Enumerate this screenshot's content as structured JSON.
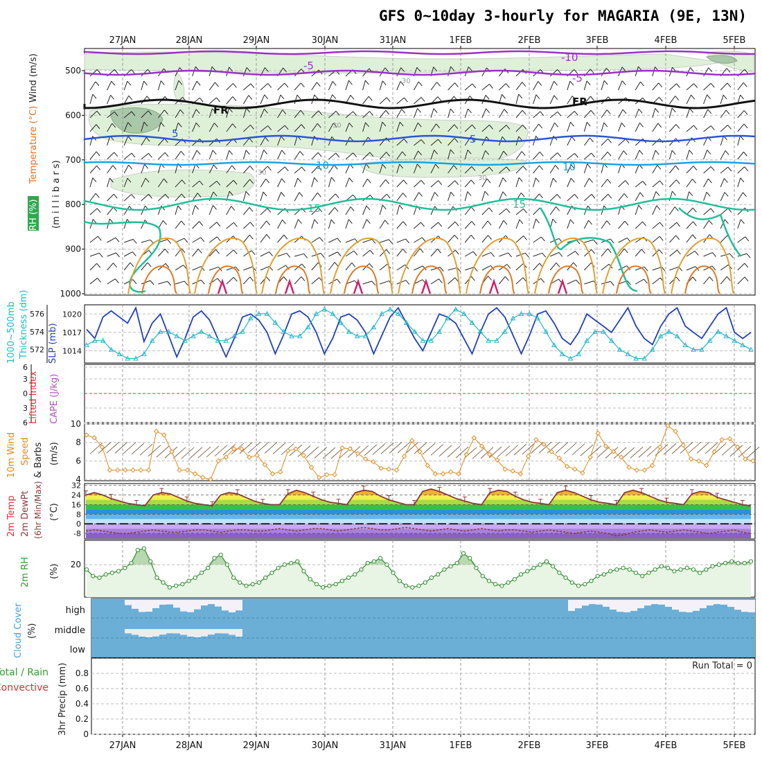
{
  "title": "GFS 0~10day 3-hourly for MAGARIA (9E, 13N)",
  "dates": [
    "27JAN",
    "28JAN",
    "29JAN",
    "30JAN",
    "31JAN",
    "1FEB",
    "2FEB",
    "3FEB",
    "4FEB",
    "5FEB"
  ],
  "colors": {
    "wind_label": "#222222",
    "temp_label": "#e03030",
    "rh_label": "#2ca02c",
    "slp": "#1f3fbf",
    "thickness": "#20b8c8",
    "lifted": "#e03030",
    "cape": "#b050c0",
    "wind10": "#e08a1e",
    "dewpt": "#8b3a3a",
    "rh2m": "#2e8b2e",
    "cloud": "#6baed6",
    "precip_total": "#2ca02c",
    "precip_conv": "#e03030"
  },
  "panels": {
    "upper": {
      "label_wind": "Wind (m/s)",
      "label_temp": "Temperature (°C)",
      "label_rh": "RH (%)",
      "units": "(m i l l i b a r s)",
      "yticks": [
        "500",
        "600",
        "700",
        "800",
        "900",
        "1000"
      ],
      "contour_labels": [
        "-10",
        "-5",
        "-5",
        "FR",
        "FR",
        "5",
        "5",
        "10",
        "10",
        "15",
        "15",
        "30",
        "30",
        "30",
        "30"
      ]
    },
    "slp": {
      "label_thick": "1000~500mb",
      "label_thick2": "Thickness (dm)",
      "label_slp": "SLP (mb)",
      "left_ticks": [
        "576",
        "574",
        "572"
      ],
      "right_ticks": [
        "1020",
        "1017",
        "1014"
      ]
    },
    "lifted": {
      "label_li": "Lifted Index",
      "label_cape": "CAPE (J/kg)",
      "ticks": [
        "6",
        "3",
        "0",
        "3",
        "6"
      ]
    },
    "wind10": {
      "label1": "10m Wind",
      "label2": "Speed",
      "label3": "& Barbs",
      "units": "(m/s)",
      "ticks": [
        "10",
        "8",
        "6",
        "4"
      ]
    },
    "temp2m": {
      "label1": "2m Temp",
      "label2": "2m DewPt",
      "label3": "(6hr Min/Max)",
      "units": "(°C)",
      "ticks": [
        "32",
        "24",
        "16",
        "8",
        "0",
        "-8"
      ]
    },
    "rh2m": {
      "label": "2m RH",
      "units": "(%)",
      "ticks": [
        "20"
      ]
    },
    "cloud": {
      "label": "Cloud Cover",
      "units": "(%)",
      "levels": [
        "high",
        "middle",
        "low"
      ]
    },
    "precip": {
      "label_total": "Total / Rain",
      "label_conv": "Convective",
      "label_y": "3hr Precip (mm)",
      "ticks": [
        "0.8",
        "0.6",
        "0.4",
        "0.2",
        "0"
      ],
      "run_total": "Run Total = 0"
    }
  },
  "chart_data": [
    {
      "panel": "slp",
      "type": "line",
      "x_label_dates": [
        "27JAN",
        "28JAN",
        "29JAN",
        "30JAN",
        "31JAN",
        "1FEB",
        "2FEB",
        "3FEB",
        "4FEB",
        "5FEB"
      ],
      "series": [
        {
          "name": "SLP (mb)",
          "values": [
            1017.5,
            1016,
            1019.5,
            1020.5,
            1019.5,
            1018.5,
            1021,
            1015.5,
            1018.5,
            1020,
            1016.5,
            1013,
            1016,
            1019.5,
            1020.5,
            1019,
            1016,
            1013,
            1016,
            1019.5,
            1020,
            1019,
            1017,
            1013.5,
            1016.5,
            1020,
            1020.5,
            1019.5,
            1017,
            1013.5,
            1016,
            1019.5,
            1020,
            1019,
            1017,
            1013.5,
            1016.5,
            1019.5,
            1021,
            1018.5,
            1016,
            1014,
            1017,
            1020,
            1019.5,
            1018.5,
            1016,
            1013.5,
            1017,
            1020,
            1021,
            1019.5,
            1016.5,
            1013.5,
            1016.5,
            1020,
            1020.5,
            1018.5,
            1016,
            1015,
            1017,
            1020,
            1019,
            1018,
            1017,
            1019,
            1021,
            1018,
            1016,
            1015,
            1018,
            1020,
            1021,
            1018,
            1017,
            1016,
            1018,
            1020,
            1021,
            1017,
            1016,
            1017
          ]
        },
        {
          "name": "1000~500mb Thickness (dm)",
          "values": [
            572.5,
            573,
            573,
            572,
            571.5,
            571,
            571,
            571.5,
            573,
            574,
            574,
            573.5,
            573,
            573.5,
            574,
            573.5,
            573,
            573,
            573.5,
            574,
            575.5,
            576,
            576,
            575,
            574,
            573.5,
            573.5,
            574.5,
            576,
            576.5,
            576,
            575,
            574,
            573.5,
            573.5,
            574.5,
            576,
            576.5,
            576,
            575,
            574,
            573,
            573,
            574,
            575.5,
            576.5,
            576,
            575,
            574,
            573,
            573,
            574,
            575.5,
            576,
            576,
            575.5,
            574,
            572.5,
            571.5,
            571,
            571.5,
            573,
            574,
            574,
            573,
            572,
            571.5,
            571,
            571,
            572,
            573.5,
            574,
            573.5,
            572.5,
            572,
            572,
            573,
            574,
            573.5,
            573,
            572.5,
            572
          ]
        }
      ],
      "ylim_left": [
        570.5,
        577
      ],
      "ylim_right": [
        1012,
        1021.5
      ]
    },
    {
      "panel": "wind10",
      "type": "line",
      "series": [
        {
          "name": "10m Wind Speed",
          "values": [
            8.8,
            8.5,
            7.5,
            5,
            5,
            5,
            5,
            5,
            5,
            9.2,
            8.8,
            7,
            5,
            5,
            4.6,
            4.2,
            4.0,
            6,
            6.4,
            7.3,
            7.3,
            6.4,
            6.6,
            5.6,
            4.6,
            4.8,
            7.1,
            7.3,
            6.6,
            5.3,
            4.2,
            4.5,
            4.5,
            7.4,
            7.3,
            6.8,
            6.2,
            5.9,
            5.2,
            5.1,
            5,
            6.5,
            8.2,
            7.0,
            5.5,
            4.6,
            4.6,
            4.8,
            4.6,
            6.7,
            8.5,
            7.6,
            6.7,
            6.1,
            5.1,
            4.9,
            4.6,
            6.5,
            8.3,
            7.8,
            7.0,
            6.3,
            5.4,
            5.1,
            4.7,
            6.4,
            9,
            7.6,
            7,
            6.4,
            5.3,
            5.0,
            5.0,
            5.5,
            7.5,
            9.8,
            9.2,
            7.7,
            6.2,
            6.0,
            5.5,
            7.0,
            8.3,
            8.4,
            7.5,
            6.2,
            6
          ]
        }
      ],
      "ylim": [
        4,
        10
      ]
    },
    {
      "panel": "temp2m",
      "type": "area",
      "series": [
        {
          "name": "2m Temp",
          "values": [
            24,
            26,
            24,
            21,
            19,
            17,
            16,
            15,
            24,
            26,
            25,
            22,
            19,
            17,
            16,
            15,
            24,
            26,
            25,
            22,
            19,
            17,
            16,
            16,
            25,
            28,
            26,
            23,
            20,
            18,
            17,
            16,
            26,
            28,
            27,
            23,
            20,
            18,
            16,
            16,
            27,
            29,
            27,
            24,
            21,
            19,
            17,
            16,
            26,
            28,
            27,
            23,
            20,
            18,
            17,
            16,
            26,
            28,
            26,
            23,
            20,
            18,
            17,
            16,
            26,
            28,
            26,
            23,
            20,
            18,
            17,
            16,
            25,
            27,
            26,
            22,
            20,
            18,
            16,
            15
          ]
        },
        {
          "name": "2m DewPt",
          "values": [
            -6,
            -5,
            -6,
            -7,
            -8,
            -8,
            -7,
            -6,
            -5,
            -6,
            -7,
            -7,
            -6,
            -5,
            -5,
            -6,
            -7,
            -6,
            -5,
            -5,
            -6,
            -6,
            -5,
            -4,
            -5,
            -6,
            -5,
            -4,
            -4,
            -5,
            -6,
            -5,
            -4,
            -3,
            -4,
            -5,
            -5,
            -4,
            -3,
            -4,
            -5,
            -6,
            -5,
            -4,
            -5,
            -6,
            -5,
            -4,
            -5,
            -6,
            -5,
            -5,
            -6,
            -7,
            -6,
            -5,
            -6,
            -7,
            -8,
            -7,
            -6,
            -7,
            -8,
            -10,
            -9,
            -7,
            -6,
            -5,
            -6,
            -7,
            -6,
            -5,
            -6,
            -7,
            -8,
            -7,
            -6,
            -5,
            -7,
            -8
          ]
        }
      ],
      "ylim": [
        -12,
        33
      ]
    },
    {
      "panel": "rh2m",
      "type": "area",
      "series": [
        {
          "name": "2m RH",
          "values": [
            17,
            13,
            12,
            14,
            15,
            16,
            18,
            21,
            29,
            30,
            22,
            12,
            9,
            6,
            7,
            8,
            10,
            12,
            15,
            18,
            24,
            26,
            20,
            12,
            9,
            7,
            8,
            9,
            12,
            15,
            18,
            20,
            21,
            22,
            16,
            11,
            8,
            6,
            7,
            8,
            10,
            12,
            14,
            17,
            21,
            22,
            24,
            20,
            15,
            10,
            7,
            6,
            7,
            9,
            12,
            14,
            17,
            19,
            21,
            27,
            24,
            18,
            13,
            10,
            8,
            7,
            9,
            11,
            14,
            16,
            18,
            20,
            22,
            19,
            15,
            12,
            9,
            7,
            8,
            10,
            13,
            14,
            16,
            17,
            18,
            17,
            15,
            13,
            15,
            17,
            19,
            18,
            16,
            17,
            18,
            17,
            15,
            17,
            19,
            20,
            21,
            22,
            21,
            21,
            22
          ]
        }
      ],
      "ylim": [
        0,
        35
      ]
    },
    {
      "panel": "precip",
      "type": "bar",
      "series": [
        {
          "name": "3hr Precip (mm)",
          "values": []
        }
      ],
      "ylim": [
        0,
        1
      ]
    }
  ]
}
